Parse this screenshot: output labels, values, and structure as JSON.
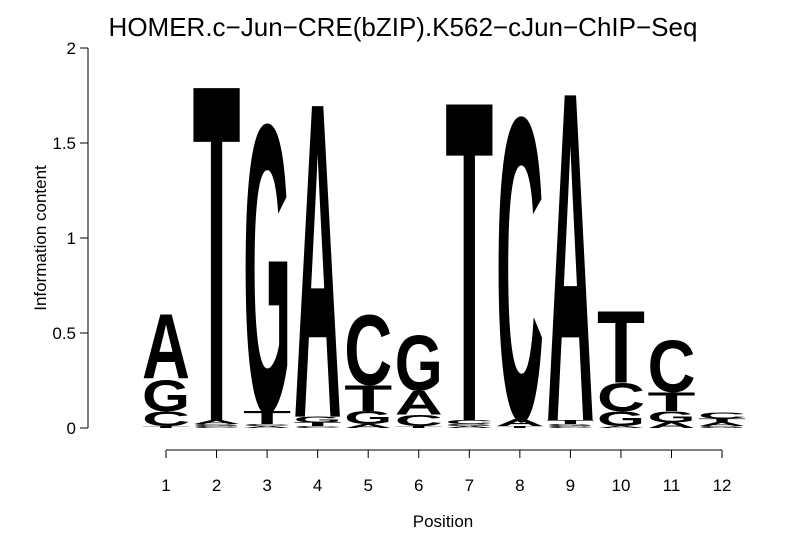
{
  "chart_data": {
    "type": "logo",
    "title": "HOMER.c−Jun−CRE(bZIP).K562−cJun−ChIP−Seq",
    "x_label": "Position",
    "y_label": "Information content",
    "categories": [
      "1",
      "2",
      "3",
      "4",
      "5",
      "6",
      "7",
      "8",
      "9",
      "10",
      "11",
      "12"
    ],
    "ylim": [
      0,
      2
    ],
    "yticks": [
      0,
      0.5,
      1,
      1.5,
      2
    ],
    "colors": {
      "A": "#00ee00",
      "C": "#0000ee",
      "G": "#ffa500",
      "T": "#ff0000"
    },
    "stacks": [
      [
        {
          "letter": "T",
          "height": 0.01
        },
        {
          "letter": "C",
          "height": 0.08
        },
        {
          "letter": "G",
          "height": 0.17
        },
        {
          "letter": "A",
          "height": 0.35
        }
      ],
      [
        {
          "letter": "C",
          "height": 0.01
        },
        {
          "letter": "G",
          "height": 0.01
        },
        {
          "letter": "A",
          "height": 0.02
        },
        {
          "letter": "T",
          "height": 1.83
        }
      ],
      [
        {
          "letter": "A",
          "height": 0.01
        },
        {
          "letter": "C",
          "height": 0.01
        },
        {
          "letter": "T",
          "height": 0.07
        },
        {
          "letter": "G",
          "height": 1.56
        }
      ],
      [
        {
          "letter": "C",
          "height": 0.01
        },
        {
          "letter": "T",
          "height": 0.02
        },
        {
          "letter": "G",
          "height": 0.03
        },
        {
          "letter": "A",
          "height": 1.71
        }
      ],
      [
        {
          "letter": "A",
          "height": 0.02
        },
        {
          "letter": "G",
          "height": 0.07
        },
        {
          "letter": "T",
          "height": 0.14
        },
        {
          "letter": "C",
          "height": 0.38
        }
      ],
      [
        {
          "letter": "T",
          "height": 0.01
        },
        {
          "letter": "C",
          "height": 0.06
        },
        {
          "letter": "A",
          "height": 0.13
        },
        {
          "letter": "G",
          "height": 0.3
        }
      ],
      [
        {
          "letter": "A",
          "height": 0.01
        },
        {
          "letter": "G",
          "height": 0.01
        },
        {
          "letter": "C",
          "height": 0.02
        },
        {
          "letter": "T",
          "height": 1.74
        }
      ],
      [
        {
          "letter": "T",
          "height": 0.01
        },
        {
          "letter": "A",
          "height": 0.04
        },
        {
          "letter": "C",
          "height": 1.64
        }
      ],
      [
        {
          "letter": "C",
          "height": 0.01
        },
        {
          "letter": "G",
          "height": 0.01
        },
        {
          "letter": "T",
          "height": 0.02
        },
        {
          "letter": "A",
          "height": 1.79
        }
      ],
      [
        {
          "letter": "A",
          "height": 0.01
        },
        {
          "letter": "G",
          "height": 0.08
        },
        {
          "letter": "C",
          "height": 0.15
        },
        {
          "letter": "T",
          "height": 0.39
        }
      ],
      [
        {
          "letter": "A",
          "height": 0.03
        },
        {
          "letter": "G",
          "height": 0.06
        },
        {
          "letter": "T",
          "height": 0.1
        },
        {
          "letter": "C",
          "height": 0.28
        }
      ],
      [
        {
          "letter": "G",
          "height": 0.01
        },
        {
          "letter": "A",
          "height": 0.02
        },
        {
          "letter": "T",
          "height": 0.02
        },
        {
          "letter": "C",
          "height": 0.03
        }
      ]
    ]
  }
}
